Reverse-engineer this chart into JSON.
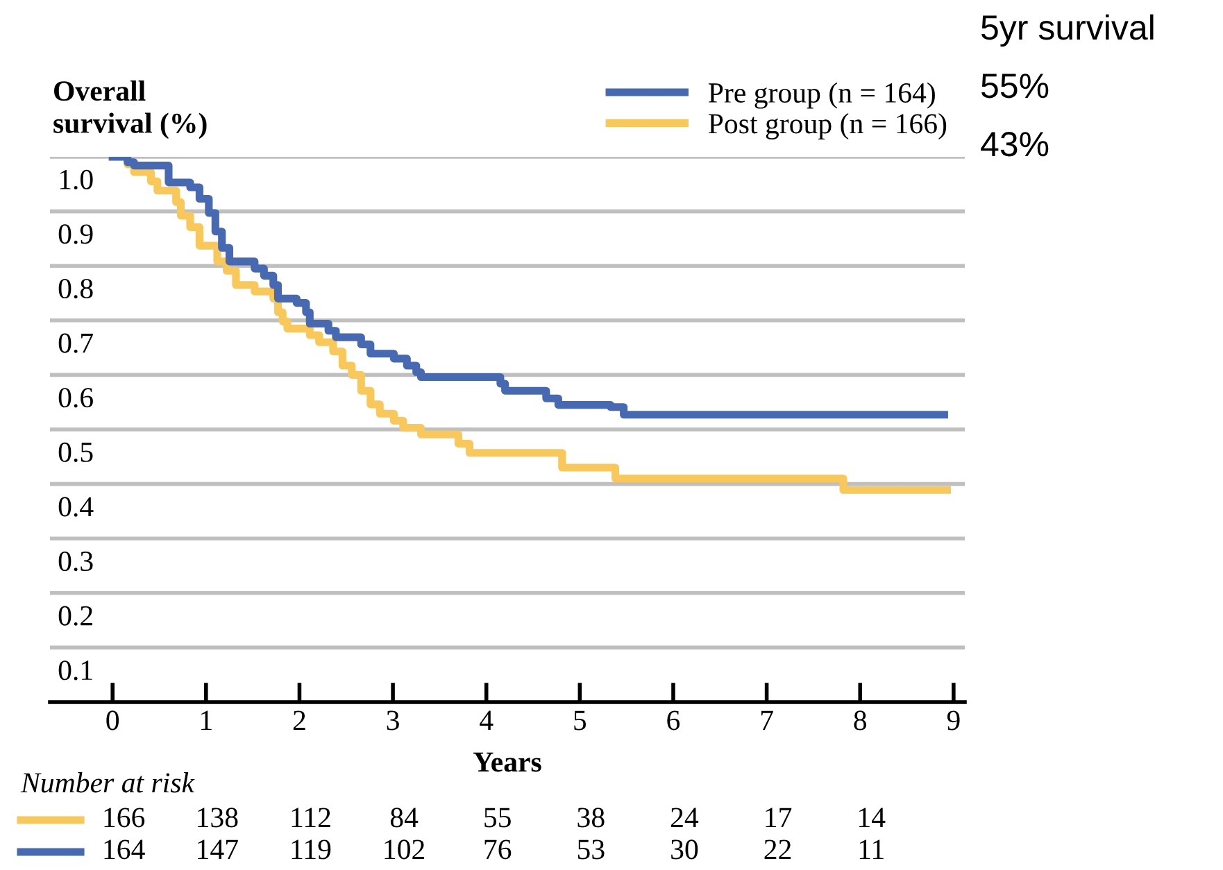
{
  "chart_data": {
    "type": "step",
    "xlabel": "Years",
    "ylabel": "Overall\nsurvival (%)",
    "xlim": [
      -0.67,
      9.12
    ],
    "xticks": [
      0,
      1,
      2,
      3,
      4,
      5,
      6,
      7,
      8,
      9
    ],
    "ylim": [
      0,
      1.0
    ],
    "yticks": [
      0.1,
      0.2,
      0.3,
      0.4,
      0.5,
      0.6,
      0.7,
      0.8,
      0.9,
      {
        "value": 1,
        "label": "1.0"
      }
    ],
    "grid": "y",
    "legend": "top right",
    "line_style": "solid",
    "marker": "none",
    "series": [
      {
        "name": "Pre group (n = 164)",
        "color": "#4669b2",
        "x": [
          0,
          0.16,
          0.23,
          0.6,
          0.83,
          0.93,
          1.03,
          1.1,
          1.17,
          1.25,
          1.52,
          1.62,
          1.72,
          1.77,
          1.97,
          2.07,
          2.11,
          2.31,
          2.39,
          2.66,
          2.76,
          3.01,
          3.15,
          3.25,
          3.3,
          4.15,
          4.2,
          4.64,
          4.77,
          5.33,
          5.47,
          8.9
        ],
        "values": [
          1.0,
          0.99,
          0.984,
          0.953,
          0.944,
          0.923,
          0.897,
          0.863,
          0.833,
          0.808,
          0.795,
          0.782,
          0.765,
          0.74,
          0.732,
          0.715,
          0.694,
          0.681,
          0.669,
          0.656,
          0.639,
          0.63,
          0.617,
          0.605,
          0.596,
          0.584,
          0.571,
          0.557,
          0.545,
          0.541,
          0.527,
          0.527
        ]
      },
      {
        "name": "Post group (n = 166)",
        "color": "#f8c85a",
        "x": [
          0,
          0.16,
          0.23,
          0.41,
          0.48,
          0.68,
          0.73,
          0.83,
          0.93,
          1.12,
          1.22,
          1.32,
          1.52,
          1.72,
          1.77,
          1.82,
          1.87,
          2.11,
          2.21,
          2.36,
          2.46,
          2.56,
          2.66,
          2.76,
          2.86,
          3.01,
          3.11,
          3.3,
          3.7,
          3.82,
          4.81,
          5.38,
          7.82,
          8.93
        ],
        "values": [
          1.0,
          0.986,
          0.972,
          0.955,
          0.938,
          0.917,
          0.892,
          0.871,
          0.837,
          0.808,
          0.791,
          0.765,
          0.753,
          0.74,
          0.715,
          0.698,
          0.685,
          0.673,
          0.66,
          0.643,
          0.617,
          0.6,
          0.571,
          0.546,
          0.529,
          0.516,
          0.503,
          0.491,
          0.474,
          0.457,
          0.43,
          0.41,
          0.389,
          0.389
        ]
      }
    ],
    "annotations": [
      "5yr survival",
      "55%",
      "43%",
      "Number at risk",
      "166",
      "138",
      "112",
      "84",
      "55",
      "38",
      "24",
      "17",
      "14",
      "164",
      "147",
      "119",
      "102",
      "76",
      "53",
      "30",
      "22",
      "11"
    ]
  }
}
